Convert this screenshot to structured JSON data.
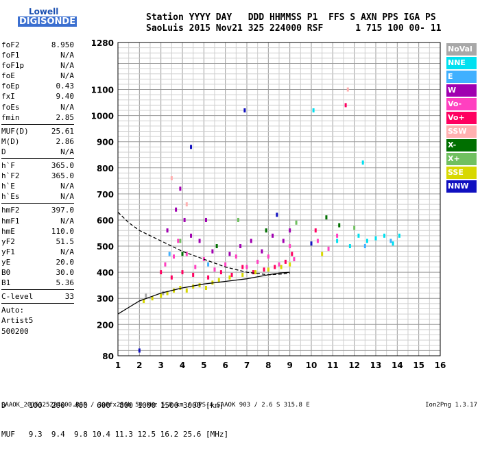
{
  "logo": {
    "line1": "Lowell",
    "line2": "DIGISONDE"
  },
  "header": {
    "line1": "Station YYYY DAY   DDD HHMMSS P1  FFS S AXN PPS IGA PS",
    "line2": "SaoLuis 2015 Nov21 325 224000 RSF      1 715 100 00- 11"
  },
  "params": [
    {
      "label": "foF2",
      "value": "8.950"
    },
    {
      "label": "foF1",
      "value": "N/A"
    },
    {
      "label": "foF1p",
      "value": "N/A"
    },
    {
      "label": "foE",
      "value": "N/A"
    },
    {
      "label": "foEp",
      "value": "0.43"
    },
    {
      "label": "fxI",
      "value": "9.40"
    },
    {
      "label": "foEs",
      "value": "N/A"
    },
    {
      "label": "fmin",
      "value": "2.85",
      "sep": true
    },
    {
      "label": "MUF(D)",
      "value": "25.61"
    },
    {
      "label": "M(D)",
      "value": "2.86"
    },
    {
      "label": "D",
      "value": "N/A",
      "sep": true
    },
    {
      "label": "h`F",
      "value": "365.0"
    },
    {
      "label": "h`F2",
      "value": "365.0"
    },
    {
      "label": "h`E",
      "value": "N/A"
    },
    {
      "label": "h`Es",
      "value": "N/A",
      "sep": true
    },
    {
      "label": "hmF2",
      "value": "397.0"
    },
    {
      "label": "hmF1",
      "value": "N/A"
    },
    {
      "label": "hmE",
      "value": "110.0"
    },
    {
      "label": "yF2",
      "value": "51.5"
    },
    {
      "label": "yF1",
      "value": "N/A"
    },
    {
      "label": "yE",
      "value": "20.0"
    },
    {
      "label": "B0",
      "value": "30.0"
    },
    {
      "label": "B1",
      "value": "5.36",
      "sep": true
    },
    {
      "label": "C-level",
      "value": "33",
      "sep": true
    }
  ],
  "autoscaling": {
    "line1": "Auto:",
    "line2": "Artist5",
    "line3": "500200"
  },
  "legend": [
    {
      "label": "NoVal",
      "color": "#a8a8a8"
    },
    {
      "label": "NNE",
      "color": "#00e0f0"
    },
    {
      "label": "E",
      "color": "#40b0ff"
    },
    {
      "label": "W",
      "color": "#a000b0"
    },
    {
      "label": "Vo-",
      "color": "#ff40c0"
    },
    {
      "label": "Vo+",
      "color": "#ff0060"
    },
    {
      "label": "SSW",
      "color": "#ffb0b0"
    },
    {
      "label": "X-",
      "color": "#006f00"
    },
    {
      "label": "X+",
      "color": "#70c060"
    },
    {
      "label": "SSE",
      "color": "#d8d800"
    },
    {
      "label": "NNW",
      "color": "#1010c0"
    }
  ],
  "muf_table": {
    "d_row": "D     100  200  400  600  800 1000 1500 3000 [km]",
    "muf_row": "MUF   9.3  9.4  9.8 10.4 11.3 12.5 16.2 25.6 [MHz]"
  },
  "footer": {
    "left": "SAAOK_2015325224000.RSF / 300fx256h 50 kHz 5.0 km / DPS-4 SAAOK 903 / 2.6 S 315.8 E",
    "right": "Ion2Png 1.3.17"
  },
  "chart_data": {
    "type": "scatter",
    "xlim": [
      1,
      16
    ],
    "ylim": [
      80,
      1280
    ],
    "x_ticks": [
      "1",
      "2",
      "3",
      "4",
      "5",
      "6",
      "7",
      "8",
      "9",
      "10",
      "11",
      "12",
      "13",
      "14",
      "15",
      "16"
    ],
    "y_ticks": [
      "80",
      "200",
      "300",
      "400",
      "500",
      "600",
      "700",
      "800",
      "900",
      "1000",
      "1100",
      "1280"
    ],
    "grid": true,
    "legend_position": "right",
    "series": [
      {
        "name": "Vo-",
        "color": "#ff40c0",
        "points": [
          [
            3.2,
            430
          ],
          [
            3.6,
            460
          ],
          [
            3.8,
            520
          ],
          [
            4.2,
            470
          ],
          [
            4.6,
            420
          ],
          [
            5.0,
            450
          ],
          [
            5.5,
            410
          ],
          [
            6.0,
            430
          ],
          [
            6.5,
            460
          ],
          [
            7.0,
            420
          ],
          [
            7.5,
            440
          ],
          [
            8.0,
            460
          ],
          [
            8.5,
            430
          ],
          [
            9.0,
            500
          ],
          [
            9.2,
            450
          ],
          [
            10.3,
            520
          ],
          [
            10.8,
            490
          ],
          [
            11.2,
            540
          ]
        ]
      },
      {
        "name": "Vo+",
        "color": "#ff0060",
        "points": [
          [
            3.0,
            400
          ],
          [
            3.5,
            380
          ],
          [
            4.0,
            400
          ],
          [
            4.5,
            390
          ],
          [
            5.2,
            380
          ],
          [
            5.8,
            400
          ],
          [
            6.3,
            390
          ],
          [
            6.8,
            420
          ],
          [
            7.3,
            400
          ],
          [
            7.8,
            410
          ],
          [
            8.3,
            420
          ],
          [
            8.8,
            440
          ],
          [
            9.1,
            470
          ],
          [
            10.2,
            560
          ],
          [
            11.6,
            1040
          ]
        ]
      },
      {
        "name": "W",
        "color": "#a000b0",
        "points": [
          [
            3.3,
            560
          ],
          [
            3.7,
            640
          ],
          [
            3.9,
            720
          ],
          [
            4.1,
            600
          ],
          [
            4.4,
            540
          ],
          [
            4.8,
            520
          ],
          [
            5.1,
            600
          ],
          [
            5.4,
            480
          ],
          [
            6.2,
            470
          ],
          [
            6.7,
            500
          ],
          [
            7.2,
            520
          ],
          [
            7.7,
            480
          ],
          [
            8.2,
            540
          ],
          [
            8.7,
            520
          ],
          [
            9.0,
            560
          ]
        ]
      },
      {
        "name": "SSE",
        "color": "#d8d800",
        "points": [
          [
            2.2,
            290
          ],
          [
            2.6,
            300
          ],
          [
            3.0,
            310
          ],
          [
            3.3,
            320
          ],
          [
            3.6,
            330
          ],
          [
            3.9,
            340
          ],
          [
            4.2,
            330
          ],
          [
            4.5,
            345
          ],
          [
            4.8,
            350
          ],
          [
            5.1,
            340
          ],
          [
            5.4,
            360
          ],
          [
            5.7,
            370
          ],
          [
            6.2,
            380
          ],
          [
            6.8,
            390
          ],
          [
            7.4,
            400
          ],
          [
            8.0,
            410
          ],
          [
            8.6,
            420
          ],
          [
            9.0,
            430
          ],
          [
            10.5,
            470
          ]
        ]
      },
      {
        "name": "NNE",
        "color": "#00e0f0",
        "points": [
          [
            10.1,
            1020
          ],
          [
            11.2,
            520
          ],
          [
            11.8,
            500
          ],
          [
            12.2,
            540
          ],
          [
            12.6,
            520
          ],
          [
            13.0,
            530
          ],
          [
            13.4,
            540
          ],
          [
            13.8,
            510
          ],
          [
            14.1,
            540
          ],
          [
            12.4,
            820
          ]
        ]
      },
      {
        "name": "X-",
        "color": "#006f00",
        "points": [
          [
            4.0,
            470
          ],
          [
            5.6,
            500
          ],
          [
            7.9,
            560
          ],
          [
            10.7,
            610
          ],
          [
            11.3,
            580
          ]
        ]
      },
      {
        "name": "X+",
        "color": "#70c060",
        "points": [
          [
            3.9,
            520
          ],
          [
            6.6,
            600
          ],
          [
            9.3,
            590
          ],
          [
            12.0,
            570
          ]
        ]
      },
      {
        "name": "SSW",
        "color": "#ffb0b0",
        "points": [
          [
            11.7,
            1100
          ],
          [
            3.5,
            760
          ],
          [
            4.2,
            660
          ]
        ]
      },
      {
        "name": "NNW",
        "color": "#1010c0",
        "points": [
          [
            2.0,
            100
          ],
          [
            4.4,
            880
          ],
          [
            6.9,
            1020
          ],
          [
            8.4,
            620
          ],
          [
            10.0,
            510
          ]
        ]
      },
      {
        "name": "E",
        "color": "#40b0ff",
        "points": [
          [
            3.4,
            470
          ],
          [
            5.2,
            430
          ],
          [
            12.5,
            500
          ],
          [
            13.7,
            520
          ]
        ]
      },
      {
        "name": "NoVal",
        "color": "#a8a8a8",
        "points": [
          [
            2.3,
            310
          ],
          [
            3.1,
            320
          ]
        ]
      }
    ],
    "profile_solid": [
      [
        1,
        240
      ],
      [
        1.5,
        265
      ],
      [
        2,
        290
      ],
      [
        2.5,
        305
      ],
      [
        3,
        320
      ],
      [
        4,
        340
      ],
      [
        5,
        355
      ],
      [
        6,
        365
      ],
      [
        7,
        375
      ],
      [
        8,
        390
      ],
      [
        8.5,
        397
      ],
      [
        9,
        400
      ]
    ],
    "profile_dashed": [
      [
        1,
        630
      ],
      [
        1.5,
        590
      ],
      [
        2,
        560
      ],
      [
        2.5,
        540
      ],
      [
        3,
        520
      ],
      [
        4,
        480
      ],
      [
        5,
        450
      ],
      [
        6,
        420
      ],
      [
        7,
        400
      ],
      [
        8,
        390
      ],
      [
        9,
        395
      ]
    ]
  }
}
